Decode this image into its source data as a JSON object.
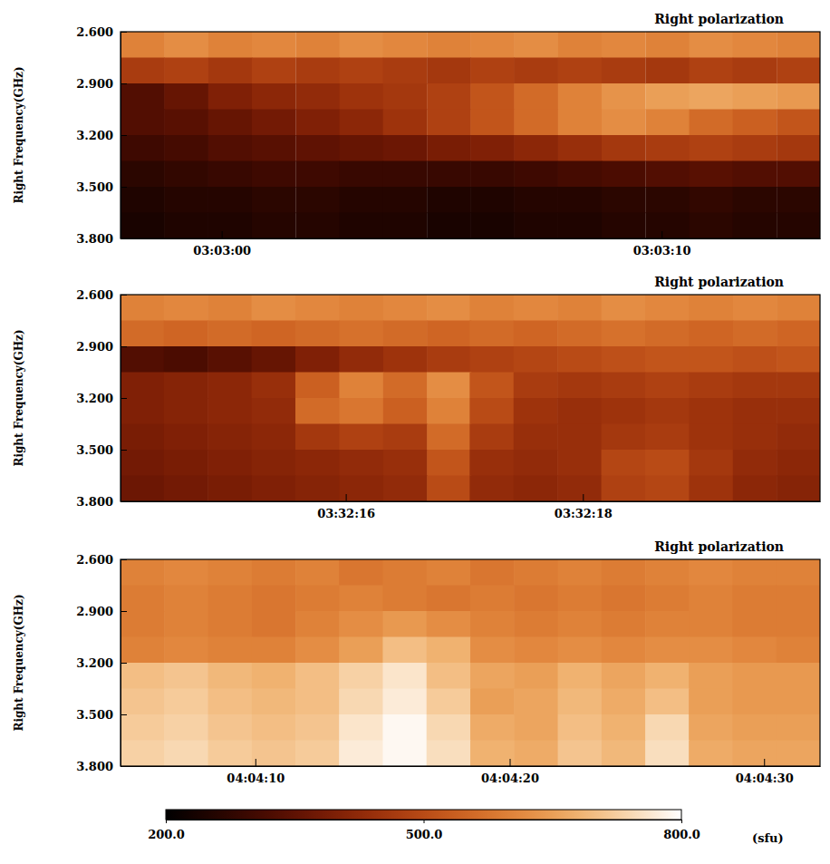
{
  "chart_data": [
    {
      "type": "heatmap",
      "title": "Right polarization",
      "y_label": "Right Frequency(GHz)",
      "xlim": [
        10977.7,
        10993.6
      ],
      "xticks": [
        {
          "value": 10980,
          "label": "03:03:00"
        },
        {
          "value": 10990,
          "label": "03:03:10"
        }
      ],
      "ylim": [
        2.6,
        3.8
      ],
      "yticks": [
        {
          "value": 2.6,
          "label": "2.600"
        },
        {
          "value": 2.9,
          "label": "2.900"
        },
        {
          "value": 3.2,
          "label": "3.200"
        },
        {
          "value": 3.5,
          "label": "3.500"
        },
        {
          "value": 3.8,
          "label": "3.800"
        }
      ],
      "x": [
        10978.2,
        10979.19,
        10980.19,
        10981.18,
        10982.18,
        10983.17,
        10984.16,
        10985.16,
        10986.15,
        10987.14,
        10988.14,
        10989.13,
        10990.13,
        10991.12,
        10992.11,
        10993.11
      ],
      "y": [
        2.675,
        2.825,
        2.975,
        3.125,
        3.275,
        3.425,
        3.575,
        3.725
      ],
      "values": [
        [
          600,
          620,
          600,
          610,
          600,
          620,
          610,
          600,
          610,
          620,
          600,
          610,
          600,
          620,
          610,
          600
        ],
        [
          470,
          480,
          460,
          480,
          470,
          480,
          470,
          460,
          480,
          470,
          480,
          470,
          460,
          480,
          470,
          480
        ],
        [
          330,
          360,
          400,
          420,
          430,
          450,
          460,
          480,
          520,
          560,
          600,
          630,
          650,
          660,
          650,
          640
        ],
        [
          330,
          340,
          360,
          380,
          400,
          420,
          450,
          480,
          520,
          560,
          600,
          620,
          600,
          560,
          540,
          520
        ],
        [
          300,
          310,
          330,
          340,
          350,
          360,
          370,
          390,
          400,
          420,
          440,
          460,
          470,
          480,
          470,
          460
        ],
        [
          270,
          280,
          290,
          300,
          300,
          290,
          290,
          290,
          290,
          300,
          310,
          320,
          330,
          340,
          330,
          330
        ],
        [
          250,
          260,
          260,
          270,
          270,
          260,
          260,
          250,
          250,
          260,
          260,
          270,
          270,
          280,
          270,
          270
        ],
        [
          240,
          250,
          250,
          260,
          260,
          250,
          250,
          240,
          240,
          250,
          250,
          260,
          260,
          270,
          260,
          260
        ]
      ]
    },
    {
      "type": "heatmap",
      "title": "Right polarization",
      "y_label": "Right Frequency(GHz)",
      "xlim": [
        12734.1,
        12740.0
      ],
      "xticks": [
        {
          "value": 12736,
          "label": "03:32:16"
        },
        {
          "value": 12738,
          "label": "03:32:18"
        }
      ],
      "ylim": [
        2.6,
        3.8
      ],
      "yticks": [
        {
          "value": 2.6,
          "label": "2.600"
        },
        {
          "value": 2.9,
          "label": "2.900"
        },
        {
          "value": 3.2,
          "label": "3.200"
        },
        {
          "value": 3.5,
          "label": "3.500"
        },
        {
          "value": 3.8,
          "label": "3.800"
        }
      ],
      "x": [
        12734.28,
        12734.65,
        12735.02,
        12735.39,
        12735.76,
        12736.13,
        12736.5,
        12736.87,
        12737.23,
        12737.6,
        12737.97,
        12738.34,
        12738.71,
        12739.08,
        12739.45,
        12739.82
      ],
      "y": [
        2.675,
        2.825,
        2.975,
        3.125,
        3.275,
        3.425,
        3.575,
        3.725
      ],
      "values": [
        [
          600,
          610,
          600,
          620,
          610,
          600,
          610,
          620,
          600,
          610,
          600,
          620,
          610,
          600,
          610,
          600
        ],
        [
          560,
          550,
          560,
          550,
          560,
          570,
          560,
          550,
          560,
          550,
          560,
          570,
          560,
          550,
          560,
          550
        ],
        [
          330,
          320,
          340,
          360,
          400,
          430,
          450,
          470,
          480,
          490,
          500,
          510,
          520,
          520,
          510,
          520
        ],
        [
          400,
          410,
          420,
          440,
          540,
          600,
          560,
          620,
          520,
          470,
          460,
          470,
          480,
          470,
          460,
          460
        ],
        [
          400,
          410,
          420,
          430,
          560,
          580,
          540,
          600,
          500,
          450,
          440,
          450,
          460,
          450,
          440,
          440
        ],
        [
          390,
          400,
          410,
          420,
          460,
          480,
          470,
          560,
          470,
          440,
          440,
          460,
          470,
          450,
          440,
          430
        ],
        [
          380,
          390,
          400,
          410,
          420,
          430,
          440,
          520,
          440,
          430,
          440,
          490,
          500,
          460,
          430,
          420
        ],
        [
          370,
          380,
          390,
          400,
          410,
          420,
          430,
          500,
          430,
          420,
          430,
          480,
          490,
          450,
          420,
          410
        ]
      ]
    },
    {
      "type": "heatmap",
      "title": "Right polarization",
      "y_label": "Right Frequency(GHz)",
      "xlim": [
        14644.7,
        14672.2
      ],
      "xticks": [
        {
          "value": 14650,
          "label": "04:04:10"
        },
        {
          "value": 14660,
          "label": "04:04:20"
        },
        {
          "value": 14670,
          "label": "04:04:30"
        }
      ],
      "ylim": [
        2.6,
        3.8
      ],
      "yticks": [
        {
          "value": 2.6,
          "label": "2.600"
        },
        {
          "value": 2.9,
          "label": "2.900"
        },
        {
          "value": 3.2,
          "label": "3.200"
        },
        {
          "value": 3.5,
          "label": "3.500"
        },
        {
          "value": 3.8,
          "label": "3.800"
        }
      ],
      "x": [
        14645.56,
        14647.28,
        14649.0,
        14650.72,
        14652.44,
        14654.15,
        14655.87,
        14657.59,
        14659.31,
        14661.03,
        14662.75,
        14664.47,
        14666.19,
        14667.9,
        14669.62,
        14671.34
      ],
      "y": [
        2.675,
        2.825,
        2.975,
        3.125,
        3.275,
        3.425,
        3.575,
        3.725
      ],
      "values": [
        [
          600,
          610,
          600,
          590,
          600,
          580,
          590,
          600,
          580,
          590,
          600,
          590,
          600,
          610,
          600,
          600
        ],
        [
          590,
          600,
          590,
          580,
          590,
          600,
          590,
          580,
          590,
          580,
          590,
          580,
          590,
          600,
          590,
          590
        ],
        [
          590,
          600,
          590,
          580,
          600,
          620,
          640,
          620,
          600,
          590,
          600,
          590,
          600,
          600,
          590,
          590
        ],
        [
          600,
          610,
          600,
          600,
          620,
          650,
          700,
          680,
          620,
          610,
          620,
          610,
          620,
          620,
          610,
          600
        ],
        [
          700,
          710,
          690,
          680,
          700,
          730,
          760,
          700,
          660,
          650,
          680,
          660,
          680,
          650,
          640,
          640
        ],
        [
          710,
          720,
          700,
          690,
          700,
          740,
          770,
          720,
          650,
          660,
          690,
          670,
          700,
          650,
          640,
          640
        ],
        [
          720,
          730,
          710,
          700,
          710,
          760,
          790,
          740,
          670,
          660,
          700,
          680,
          740,
          660,
          650,
          650
        ],
        [
          730,
          740,
          720,
          710,
          720,
          770,
          790,
          750,
          680,
          670,
          710,
          690,
          750,
          670,
          660,
          660
        ]
      ],
      "colorbar": {
        "range": [
          200,
          800
        ],
        "ticks": [
          {
            "value": 200,
            "label": "200.0"
          },
          {
            "value": 500,
            "label": "500.0"
          },
          {
            "value": 800,
            "label": "800.0"
          }
        ],
        "label": "(sfu)"
      }
    }
  ]
}
